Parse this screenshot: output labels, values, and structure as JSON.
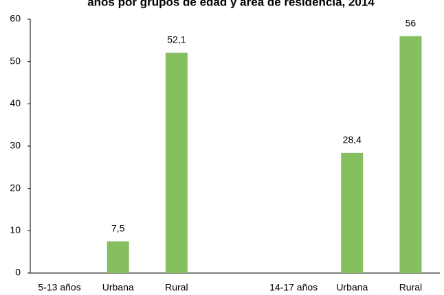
{
  "chart_data": {
    "type": "bar",
    "title": "años por grupos de edad y área de residencia, 2014",
    "categories": [
      "5-13 años",
      "Urbana",
      "Rural",
      null,
      "14-17 años",
      "Urbana",
      "Rural"
    ],
    "values": [
      null,
      7.5,
      52.1,
      null,
      null,
      28.4,
      56
    ],
    "value_labels": [
      null,
      "7,5",
      "52,1",
      null,
      null,
      "28,4",
      "56"
    ],
    "color": "#86bf60",
    "ylim": [
      0,
      60
    ],
    "yticks": [
      0,
      10,
      20,
      30,
      40,
      50,
      60
    ],
    "grid": false
  }
}
